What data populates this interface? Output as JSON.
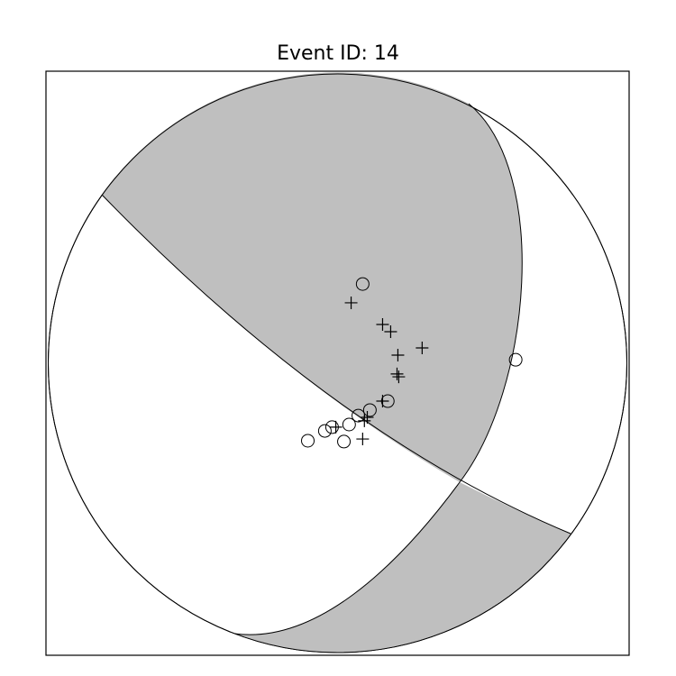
{
  "chart_data": {
    "type": "scatter",
    "title": "Event ID: 14",
    "xlim": [
      -1.01,
      1.01
    ],
    "ylim": [
      -1.01,
      1.01
    ],
    "series": [
      {
        "marker": "circle",
        "color": "#000000",
        "x": [
          0.087,
          0.617,
          0.174,
          0.112,
          0.072,
          0.04,
          -0.019,
          -0.044,
          0.022,
          -0.103
        ],
        "y": [
          0.274,
          0.012,
          -0.131,
          -0.162,
          -0.181,
          -0.212,
          -0.221,
          -0.234,
          -0.271,
          -0.268
        ]
      },
      {
        "marker": "plus",
        "color": "#000000",
        "x": [
          0.047,
          0.156,
          0.184,
          0.293,
          0.209,
          0.206,
          0.212,
          0.156,
          0.103,
          0.093,
          0.087,
          -0.006
        ],
        "y": [
          0.209,
          0.134,
          0.109,
          0.053,
          0.028,
          -0.037,
          -0.047,
          -0.131,
          -0.187,
          -0.199,
          -0.262,
          -0.221
        ]
      }
    ]
  }
}
